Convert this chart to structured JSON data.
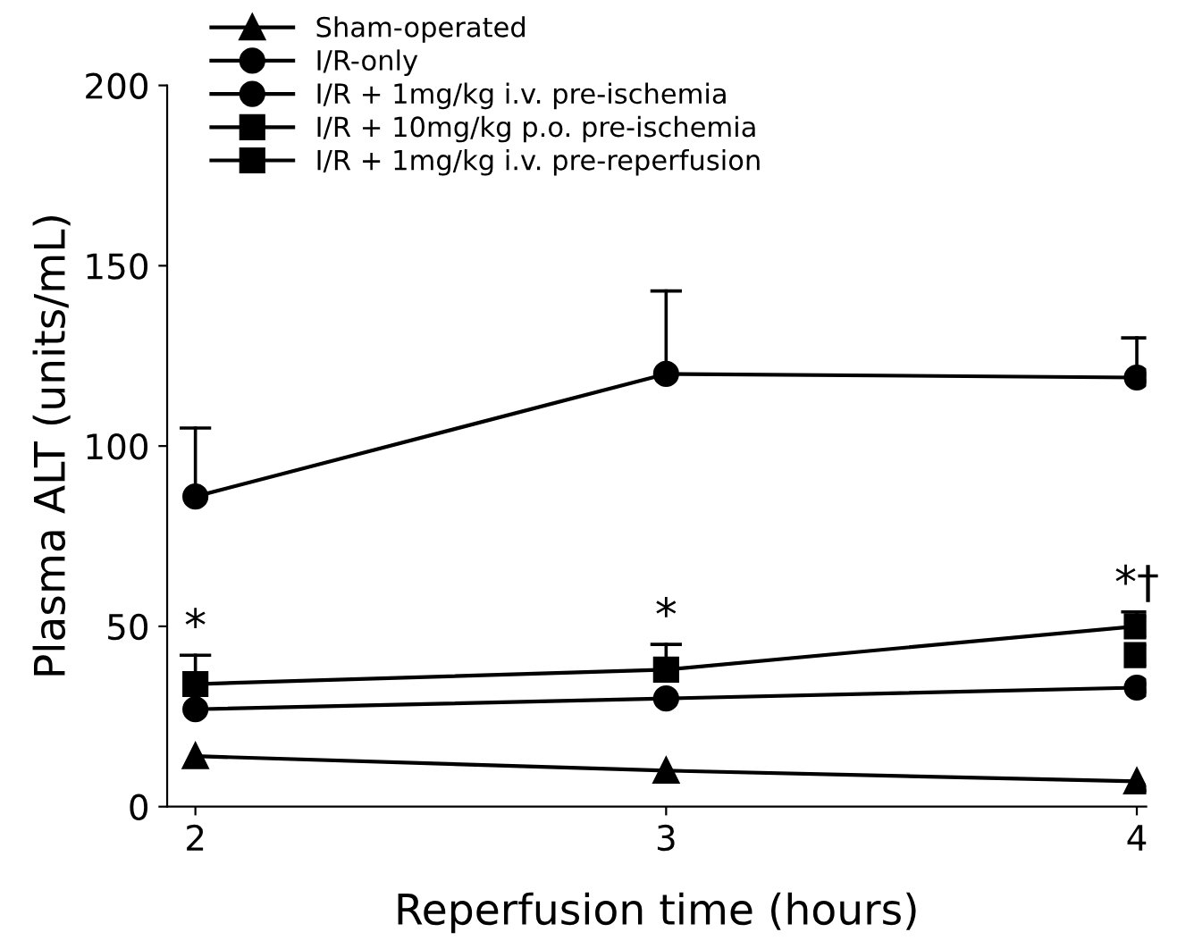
{
  "chart_data": {
    "type": "line",
    "xlabel": "Reperfusion time (hours)",
    "ylabel": "Plasma ALT (units/mL)",
    "x": [
      2,
      3,
      4
    ],
    "xlim": [
      1.94,
      4.02
    ],
    "xticks": [
      2,
      3,
      4
    ],
    "ylim": [
      0,
      200
    ],
    "yticks": [
      0,
      50,
      100,
      150,
      200
    ],
    "grid": false,
    "legend": "top left",
    "line_style": "solid",
    "series": [
      {
        "name": "Sham-operated",
        "color": "#000000",
        "marker": "triangle",
        "values": [
          14,
          10,
          7
        ]
      },
      {
        "name": "I/R-only",
        "color": "#000000",
        "marker": "circle",
        "values": [
          86,
          120,
          119
        ],
        "errors": [
          [
            86,
            105
          ],
          [
            120,
            143
          ],
          [
            119,
            130
          ]
        ]
      },
      {
        "name": "I/R + 1mg/kg i.v. pre-ischemia",
        "color": "#000000",
        "marker": "circle",
        "values": [
          27,
          30,
          33
        ]
      },
      {
        "name": "I/R + 10mg/kg p.o. pre-ischemia",
        "color": "#000000",
        "marker": "square",
        "values": [
          null,
          null,
          42
        ]
      },
      {
        "name": "I/R + 1mg/kg i.v. pre-reperfusion",
        "color": "#000000",
        "marker": "square",
        "values": [
          34,
          38,
          50
        ],
        "errors": [
          [
            34,
            42
          ],
          [
            38,
            45
          ],
          [
            50,
            54
          ]
        ]
      }
    ],
    "annotations": [
      "*",
      "*",
      "*†"
    ]
  }
}
